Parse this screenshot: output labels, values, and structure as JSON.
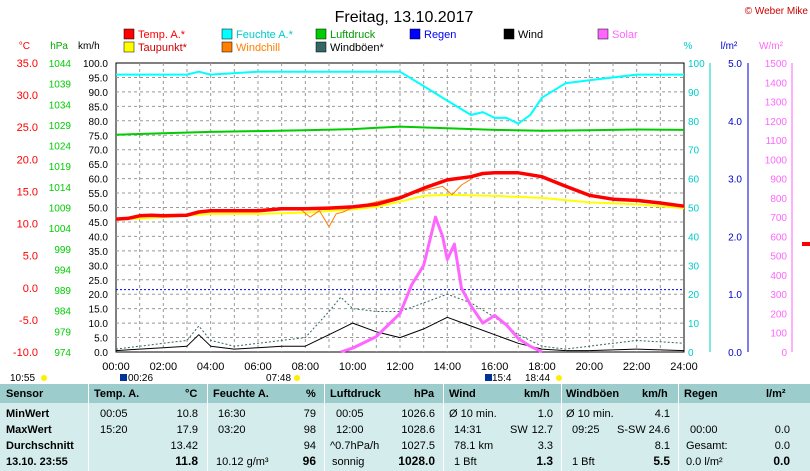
{
  "title": "Freitag, 13.10.2017",
  "copyright": "© Weber Mike",
  "legend": [
    {
      "name": "Temp. A.*",
      "color": "#ff0000"
    },
    {
      "name": "Feuchte A.*",
      "color": "#00ffff"
    },
    {
      "name": "Luftdruck",
      "color": "#00cc00"
    },
    {
      "name": "Regen",
      "color": "#0000ff"
    },
    {
      "name": "Wind",
      "color": "#000000"
    },
    {
      "name": "Solar",
      "color": "#ff66ff"
    },
    {
      "name": "Taupunkt*",
      "color": "#ffff00"
    },
    {
      "name": "Windchill",
      "color": "#ff8000"
    },
    {
      "name": "Windböen*",
      "color": "#336666"
    }
  ],
  "axis_units": {
    "temp": "°C",
    "press": "hPa",
    "wind": "km/h",
    "hum": "%",
    "rain": "l/m²",
    "solar": "W/m²"
  },
  "axes": {
    "temp": {
      "ticks": [
        "35.0",
        "30.0",
        "25.0",
        "20.0",
        "15.0",
        "10.0",
        "5.0",
        "0.0",
        "-5.0",
        "-10.0"
      ],
      "color": "#ff0000"
    },
    "press": {
      "ticks": [
        "1044",
        "1039",
        "1034",
        "1029",
        "1024",
        "1019",
        "1014",
        "1009",
        "1004",
        "999",
        "994",
        "989",
        "984",
        "979",
        "974"
      ],
      "color": "#00cc00"
    },
    "wind": {
      "ticks": [
        "100.0",
        "95.0",
        "90.0",
        "85.0",
        "80.0",
        "75.0",
        "70.0",
        "65.0",
        "60.0",
        "55.0",
        "50.0",
        "45.0",
        "40.0",
        "35.0",
        "30.0",
        "25.0",
        "20.0",
        "15.0",
        "10.0",
        "5.0",
        "0.0"
      ],
      "color": "#000000"
    },
    "hum": {
      "ticks": [
        "100",
        "90",
        "80",
        "70",
        "60",
        "50",
        "40",
        "30",
        "20",
        "10",
        "0"
      ],
      "color": "#00cccc"
    },
    "rain": {
      "ticks": [
        "5.0",
        "4.0",
        "3.0",
        "2.0",
        "1.0",
        "0.0"
      ],
      "color": "#0000cc"
    },
    "solar": {
      "ticks": [
        "1500",
        "1400",
        "1300",
        "1200",
        "1100",
        "1000",
        "900",
        "800",
        "700",
        "600",
        "500",
        "400",
        "300",
        "200",
        "100",
        "0"
      ],
      "color": "#ff66ff"
    },
    "x": {
      "ticks": [
        "00:00",
        "02:00",
        "04:00",
        "06:00",
        "08:00",
        "10:00",
        "12:00",
        "14:00",
        "16:00",
        "18:00",
        "20:00",
        "22:00",
        "24:00"
      ]
    }
  },
  "sun_marks": {
    "rise_left": "10:55",
    "a": "00:26",
    "b": "07:48",
    "c": "15:4",
    "d": "18:44"
  },
  "chart_data": {
    "type": "line",
    "title": "Freitag, 13.10.2017",
    "x_unit": "hours",
    "xlim": [
      0,
      24
    ],
    "series": [
      {
        "name": "Temp. A.*",
        "axis": "°C",
        "ylim": [
          -10,
          35
        ],
        "x": [
          0,
          0.5,
          1,
          1.5,
          2,
          3,
          3.5,
          4,
          5,
          6,
          7,
          8,
          9,
          10,
          11,
          12,
          13,
          14,
          15,
          15.5,
          16,
          17,
          18,
          19,
          20,
          21,
          22,
          23,
          24
        ],
        "y": [
          10.7,
          10.8,
          11.2,
          11.3,
          11.2,
          11.3,
          11.8,
          12.0,
          12.0,
          12.0,
          12.3,
          12.3,
          12.4,
          12.6,
          13.0,
          14.0,
          15.5,
          16.8,
          17.3,
          17.8,
          17.9,
          17.9,
          17.3,
          15.8,
          14.4,
          13.8,
          13.6,
          13.2,
          12.7
        ]
      },
      {
        "name": "Taupunkt*",
        "axis": "°C",
        "ylim": [
          -10,
          35
        ],
        "x": [
          0,
          2,
          4,
          6,
          8,
          10,
          11,
          12,
          13,
          14,
          16,
          18,
          20,
          22,
          24
        ],
        "y": [
          10.6,
          11.0,
          11.5,
          11.5,
          11.7,
          12.2,
          12.6,
          13.4,
          14.3,
          14.5,
          14.3,
          14.0,
          13.3,
          13.0,
          12.4
        ]
      },
      {
        "name": "Windchill",
        "axis": "°C",
        "ylim": [
          -10,
          35
        ],
        "x": [
          7.8,
          8.2,
          8.6,
          9.0,
          9.3,
          9.6,
          10.0,
          13.8,
          14.2,
          14.6,
          15.0
        ],
        "y": [
          12.2,
          11.0,
          12.0,
          9.5,
          11.5,
          11.8,
          12.5,
          15.8,
          14.5,
          16.0,
          16.9
        ]
      },
      {
        "name": "Feuchte A.*",
        "axis": "%",
        "ylim": [
          0,
          100
        ],
        "x": [
          0,
          2,
          3,
          3.5,
          4,
          6,
          8,
          10,
          11,
          12,
          13,
          14,
          15,
          15.5,
          16,
          16.5,
          17,
          17.5,
          18,
          19,
          20,
          22,
          24
        ],
        "y": [
          96,
          96,
          96,
          97,
          96,
          97,
          97,
          97,
          97,
          97,
          92,
          87,
          82,
          83,
          81,
          81,
          79,
          82,
          88,
          93,
          94,
          96,
          96
        ]
      },
      {
        "name": "Luftdruck",
        "axis": "hPa",
        "ylim": [
          974,
          1044
        ],
        "x": [
          0,
          2,
          4,
          6,
          8,
          10,
          12,
          14,
          16,
          18,
          20,
          22,
          24
        ],
        "y": [
          1026.6,
          1027.0,
          1027.3,
          1027.5,
          1027.7,
          1028.0,
          1028.6,
          1028.2,
          1027.8,
          1027.6,
          1027.7,
          1027.9,
          1027.8
        ]
      },
      {
        "name": "Wind",
        "axis": "km/h",
        "ylim": [
          0,
          100
        ],
        "x": [
          0,
          1,
          2,
          3,
          3.5,
          4,
          5,
          6,
          7,
          8,
          9,
          9.5,
          10,
          11,
          12,
          13,
          14,
          15,
          16,
          17,
          18,
          19,
          20,
          22,
          24
        ],
        "y": [
          0.5,
          1,
          1.5,
          2,
          6,
          2,
          1,
          1.5,
          2,
          2,
          6,
          8,
          10,
          7,
          5,
          8,
          12,
          9,
          6,
          3,
          1,
          0.5,
          0.5,
          1,
          0.5
        ]
      },
      {
        "name": "Windböen*",
        "axis": "km/h",
        "ylim": [
          0,
          100
        ],
        "x": [
          0,
          1,
          2,
          3,
          3.5,
          4,
          5,
          6,
          7,
          8,
          9,
          9.5,
          10,
          11,
          12,
          13,
          14,
          15,
          16,
          17,
          18,
          19,
          20,
          22,
          24
        ],
        "y": [
          1,
          2,
          3,
          4,
          9,
          4,
          2,
          3,
          4,
          5,
          14,
          19,
          15,
          14,
          14,
          17,
          20,
          17,
          12,
          6,
          2,
          1,
          2,
          4,
          3
        ]
      },
      {
        "name": "Solar",
        "axis": "W/m²",
        "ylim": [
          0,
          1500
        ],
        "x": [
          9.5,
          10,
          11,
          12,
          12.5,
          13,
          13.5,
          13.8,
          14,
          14.3,
          14.6,
          15,
          15.5,
          16,
          16.5,
          17,
          17.5,
          18
        ],
        "y": [
          0,
          20,
          80,
          200,
          350,
          450,
          700,
          600,
          480,
          560,
          330,
          240,
          150,
          190,
          140,
          70,
          30,
          0
        ]
      },
      {
        "name": "Regen",
        "axis": "l/m²",
        "ylim": [
          0,
          5
        ],
        "x": [
          0,
          24
        ],
        "y": [
          1.08,
          1.08
        ]
      }
    ]
  },
  "table": {
    "headers": {
      "sensor": "Sensor",
      "temp": "Temp. A.",
      "temp_unit": "°C",
      "hum": "Feuchte A.",
      "hum_unit": "%",
      "press": "Luftdruck",
      "press_unit": "hPa",
      "wind": "Wind",
      "wind_unit": "km/h",
      "gust": "Windböen",
      "gust_unit": "km/h",
      "rain": "Regen",
      "rain_unit": "l/m²"
    },
    "row_labels": {
      "min": "MinWert",
      "max": "MaxWert",
      "avg": "Durchschnitt",
      "date": "13.10. 23:55"
    },
    "temp": {
      "min_time": "00:05",
      "min": "10.8",
      "max_time": "15:20",
      "max": "17.9",
      "avg": "13.42",
      "cur": "11.8"
    },
    "hum": {
      "min_time": "16:30",
      "min": "79",
      "max_time": "03:20",
      "max": "98",
      "avg": "94",
      "abs": "10.12 g/m³",
      "cur": "96"
    },
    "press": {
      "min_time": "00:05",
      "min": "1026.6",
      "max_time": "12:00",
      "max": "1028.6",
      "trend": "^0.7hPa/h",
      "avg": "1027.5",
      "weather": "sonnig",
      "cur": "1028.0"
    },
    "wind": {
      "avg_label": "Ø 10 min.",
      "avg": "1.0",
      "max_time": "14:31",
      "max_dir": "SW",
      "max": "12.7",
      "dist": "78.1 km",
      "dist_val": "3.3",
      "bft": "1 Bft",
      "cur": "1.3"
    },
    "gust": {
      "avg_label": "Ø 10 min.",
      "avg": "4.1",
      "max_time": "09:25",
      "max_dir": "S-SW",
      "max": "24.6",
      "avg2": "8.1",
      "bft": "1 Bft",
      "cur": "5.5"
    },
    "rain": {
      "min_time": "00:00",
      "min": "0.0",
      "total_label": "Gesamt:",
      "total": "0.0",
      "cur_rate": "0.0 l/m²",
      "cur": "0.0"
    }
  }
}
